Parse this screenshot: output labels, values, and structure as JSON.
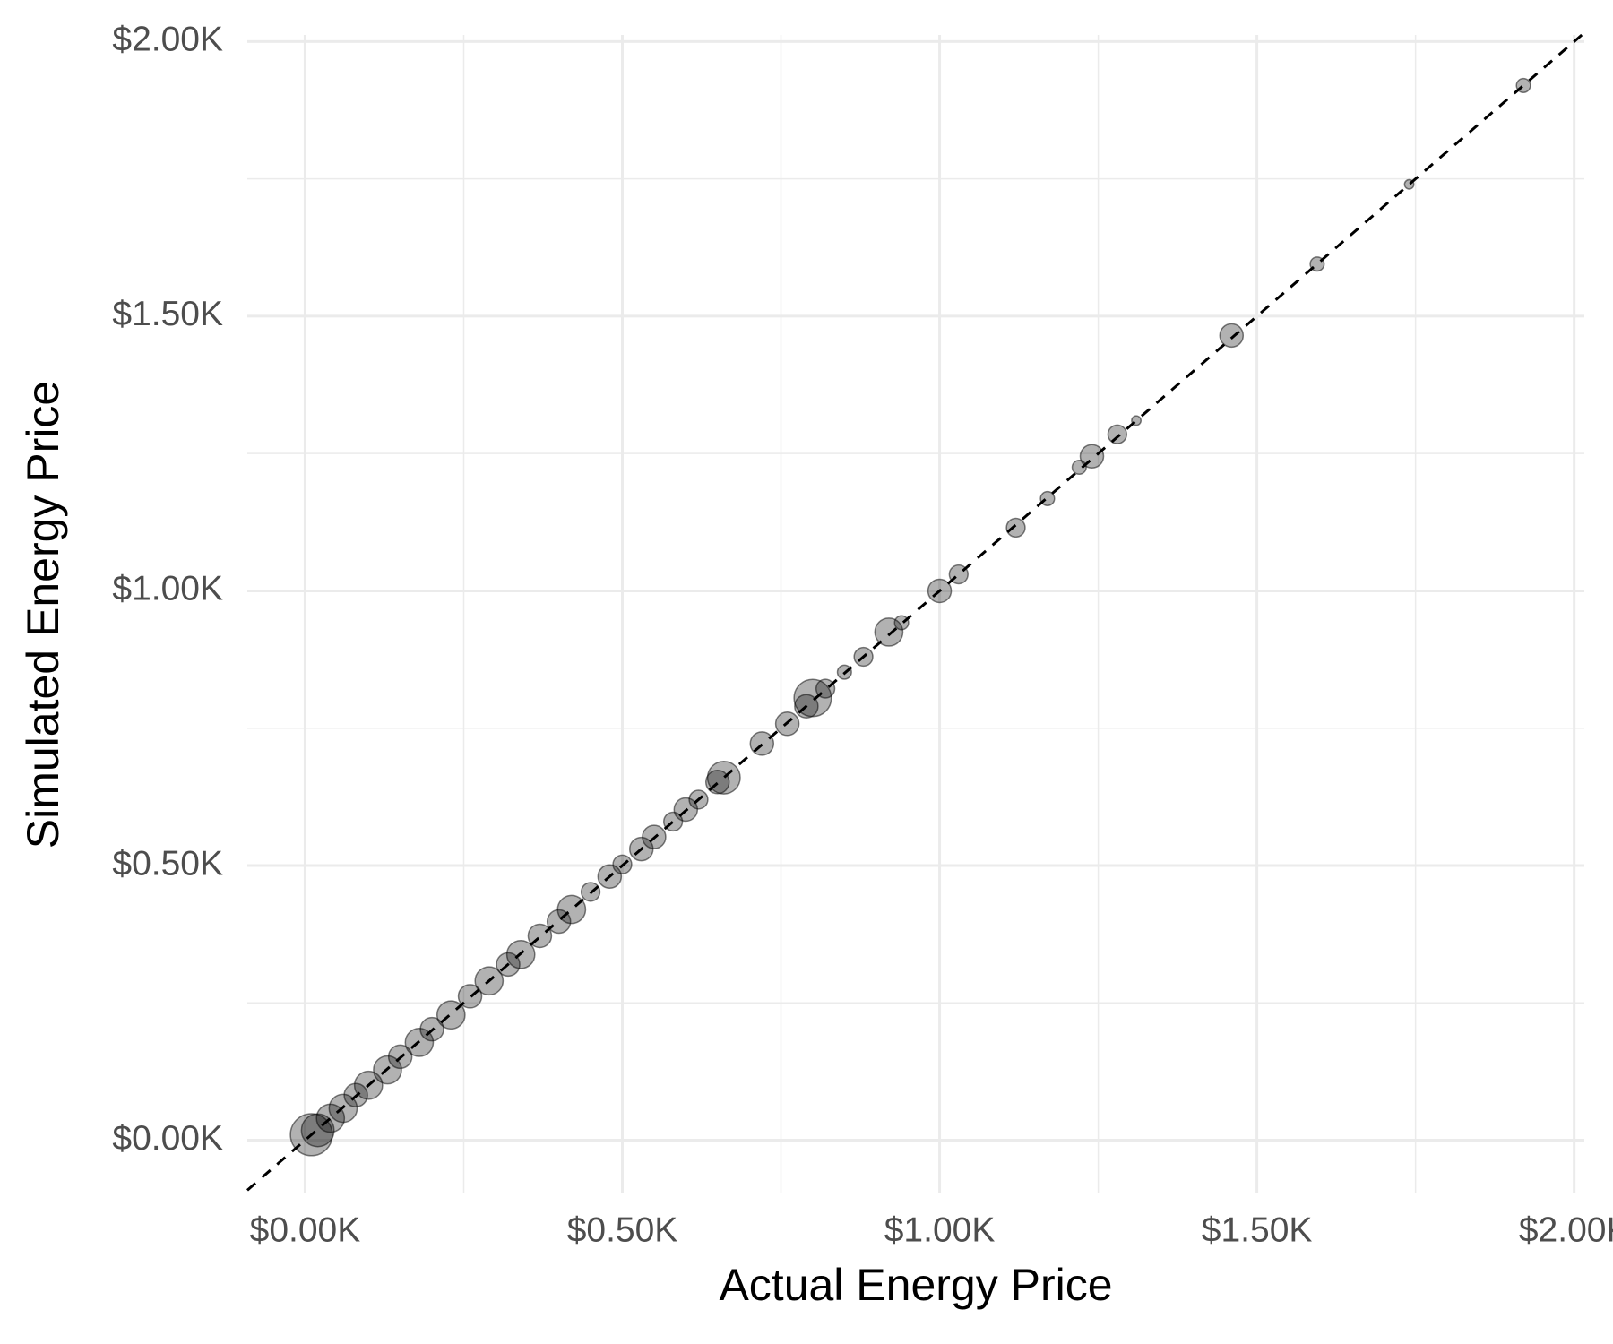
{
  "chart_data": {
    "type": "scatter",
    "x_label": "Actual Energy Price",
    "y_label": "Simulated Energy Price",
    "xlim": [
      -91,
      2016
    ],
    "ylim": [
      -97,
      2012
    ],
    "xticks": [
      {
        "value": 0,
        "label": "$0.00K"
      },
      {
        "value": 500,
        "label": "$0.50K"
      },
      {
        "value": 1000,
        "label": "$1.00K"
      },
      {
        "value": 1500,
        "label": "$1.50K"
      },
      {
        "value": 2000,
        "label": "$2.00K"
      }
    ],
    "yticks": [
      {
        "value": 0,
        "label": "$0.00K"
      },
      {
        "value": 500,
        "label": "$0.50K"
      },
      {
        "value": 1000,
        "label": "$1.00K"
      },
      {
        "value": 1500,
        "label": "$1.50K"
      },
      {
        "value": 2000,
        "label": "$2.00K"
      }
    ],
    "minor_xticks": [
      250,
      750,
      1250,
      1750
    ],
    "minor_yticks": [
      250,
      750,
      1250,
      1750
    ],
    "grid": true,
    "identity_line": true,
    "opacity": 0.3,
    "x": [
      10,
      20,
      40,
      60,
      80,
      100,
      130,
      150,
      180,
      200,
      230,
      260,
      290,
      320,
      340,
      370,
      400,
      420,
      450,
      480,
      500,
      530,
      550,
      580,
      600,
      620,
      650,
      660,
      720,
      760,
      790,
      800,
      820,
      850,
      880,
      920,
      940,
      1000,
      1030,
      1120,
      1170,
      1220,
      1240,
      1280,
      1310,
      1460,
      1595,
      1740,
      1920
    ],
    "series": [
      {
        "color": "#000000",
        "values": [
          10,
          18,
          40,
          58,
          82,
          100,
          128,
          152,
          178,
          202,
          228,
          262,
          290,
          320,
          338,
          372,
          398,
          420,
          452,
          480,
          502,
          530,
          552,
          580,
          602,
          620,
          652,
          660,
          722,
          758,
          790,
          805,
          822,
          852,
          880,
          925,
          942,
          1000,
          1030,
          1115,
          1168,
          1225,
          1245,
          1285,
          1310,
          1465,
          1595,
          1740,
          1920
        ],
        "sizes": [
          9,
          7,
          6,
          6,
          5,
          6,
          6,
          5,
          6,
          5,
          6,
          5,
          6,
          5,
          6,
          5,
          5,
          6,
          4,
          5,
          4,
          5,
          5,
          4,
          5,
          4,
          5,
          7,
          5,
          5,
          5,
          8,
          4,
          3,
          4,
          6,
          3,
          5,
          4,
          4,
          3,
          3,
          5,
          4,
          2,
          5,
          3,
          2,
          3
        ]
      }
    ]
  }
}
